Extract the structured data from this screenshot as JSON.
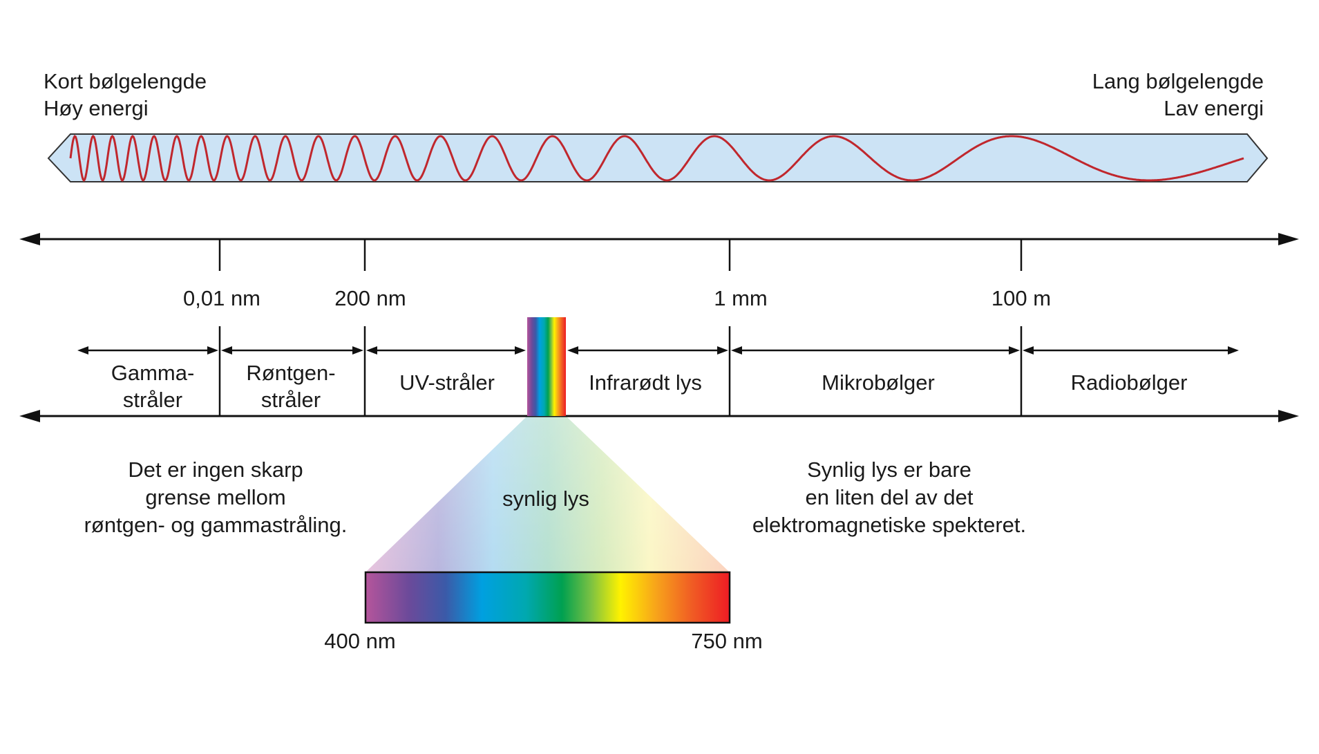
{
  "header": {
    "left_line1": "Kort bølgelengde",
    "left_line2": "Høy energi",
    "right_line1": "Lang bølgelengde",
    "right_line2": "Lav energi"
  },
  "scale_ticks": [
    {
      "label": "0,01 nm"
    },
    {
      "label": "200 nm"
    },
    {
      "label": "1 mm"
    },
    {
      "label": "100 m"
    }
  ],
  "bands": [
    {
      "line1": "Gamma-",
      "line2": "stråler"
    },
    {
      "line1": "Røntgen-",
      "line2": "stråler"
    },
    {
      "line1": "UV-stråler",
      "line2": ""
    },
    {
      "line1": "Infrarødt lys",
      "line2": ""
    },
    {
      "line1": "Mikrobølger",
      "line2": ""
    },
    {
      "line1": "Radiobølger",
      "line2": ""
    }
  ],
  "notes": {
    "left": [
      "Det er ingen skarp",
      "grense mellom",
      "røntgen- og gammastråling."
    ],
    "right": [
      "Synlig lys er bare",
      "en liten del av det",
      "elektromagnetiske spekteret."
    ]
  },
  "visible": {
    "label": "synlig lys",
    "min_label": "400 nm",
    "max_label": "750 nm"
  },
  "colors": {
    "wave": "#c0272d",
    "tube_fill": "#cce3f5",
    "axis": "#111111"
  }
}
